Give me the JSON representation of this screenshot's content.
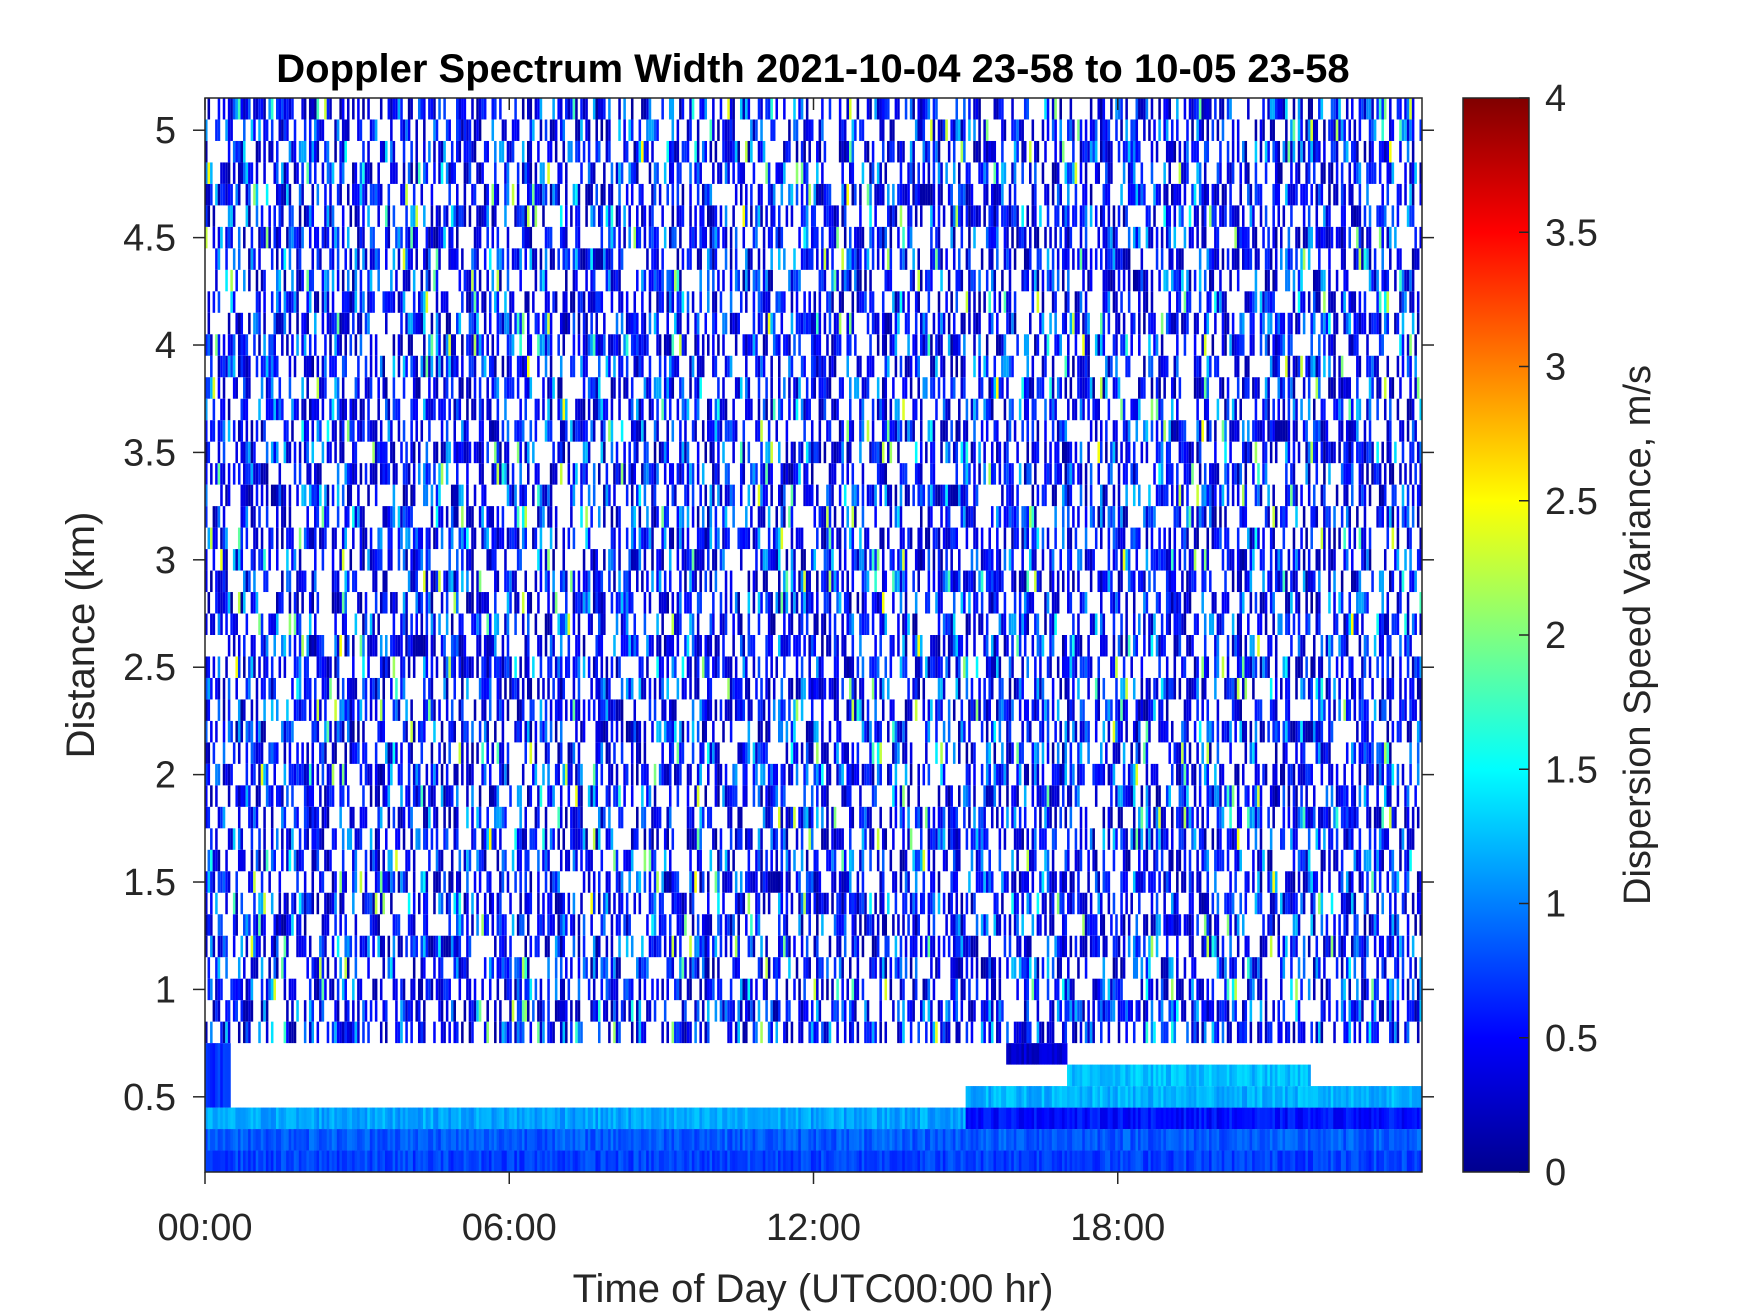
{
  "chart_data": {
    "type": "heatmap",
    "title": "Doppler Spectrum Width 2021-10-04 23-58 to 10-05 23-58",
    "xlabel": "Time of Day (UTC00:00 hr)",
    "ylabel": "Distance (km)",
    "colorbar_label": "Dispersion Speed Variance, m/s",
    "colormap": "jet",
    "xlim": [
      0,
      24
    ],
    "x_unit": "hours",
    "x_ticks": [
      {
        "value": 0,
        "label": "00:00"
      },
      {
        "value": 6,
        "label": "06:00"
      },
      {
        "value": 12,
        "label": "12:00"
      },
      {
        "value": 18,
        "label": "18:00"
      }
    ],
    "ylim": [
      0.15,
      5.15
    ],
    "y_ticks": [
      {
        "value": 0.5,
        "label": "0.5"
      },
      {
        "value": 1,
        "label": "1"
      },
      {
        "value": 1.5,
        "label": "1.5"
      },
      {
        "value": 2,
        "label": "2"
      },
      {
        "value": 2.5,
        "label": "2.5"
      },
      {
        "value": 3,
        "label": "3"
      },
      {
        "value": 3.5,
        "label": "3.5"
      },
      {
        "value": 4,
        "label": "4"
      },
      {
        "value": 4.5,
        "label": "4.5"
      },
      {
        "value": 5,
        "label": "5"
      }
    ],
    "clim": [
      0,
      4
    ],
    "colorbar_ticks": [
      {
        "value": 0,
        "label": "0"
      },
      {
        "value": 0.5,
        "label": "0.5"
      },
      {
        "value": 1,
        "label": "1"
      },
      {
        "value": 1.5,
        "label": "1.5"
      },
      {
        "value": 2,
        "label": "2"
      },
      {
        "value": 2.5,
        "label": "2.5"
      },
      {
        "value": 3,
        "label": "3"
      },
      {
        "value": 3.5,
        "label": "3.5"
      },
      {
        "value": 4,
        "label": "4"
      }
    ],
    "y_bin_km": 0.1,
    "noise_field": {
      "distance_range_km": [
        0.75,
        5.15
      ],
      "coverage": 0.5,
      "typical_value_range": [
        0.1,
        1.6
      ]
    },
    "layers": [
      {
        "distance_km": [
          0.15,
          0.25
        ],
        "x_hours": [
          0,
          24
        ],
        "value": 0.75
      },
      {
        "distance_km": [
          0.25,
          0.35
        ],
        "x_hours": [
          0,
          24
        ],
        "value": 0.85
      },
      {
        "distance_km": [
          0.35,
          0.45
        ],
        "x_hours": [
          0,
          15
        ],
        "value": 1.15
      },
      {
        "distance_km": [
          0.35,
          0.45
        ],
        "x_hours": [
          15,
          24
        ],
        "value": 0.55
      },
      {
        "distance_km": [
          0.45,
          0.55
        ],
        "x_hours": [
          15,
          24
        ],
        "value": 1.2
      },
      {
        "distance_km": [
          0.55,
          0.65
        ],
        "x_hours": [
          17,
          21.8
        ],
        "value": 1.25
      },
      {
        "distance_km": [
          0.65,
          0.75
        ],
        "x_hours": [
          15.8,
          17
        ],
        "value": 0.3
      },
      {
        "distance_km": [
          0.45,
          0.75
        ],
        "x_hours": [
          0,
          0.5
        ],
        "value": 0.7
      }
    ]
  }
}
